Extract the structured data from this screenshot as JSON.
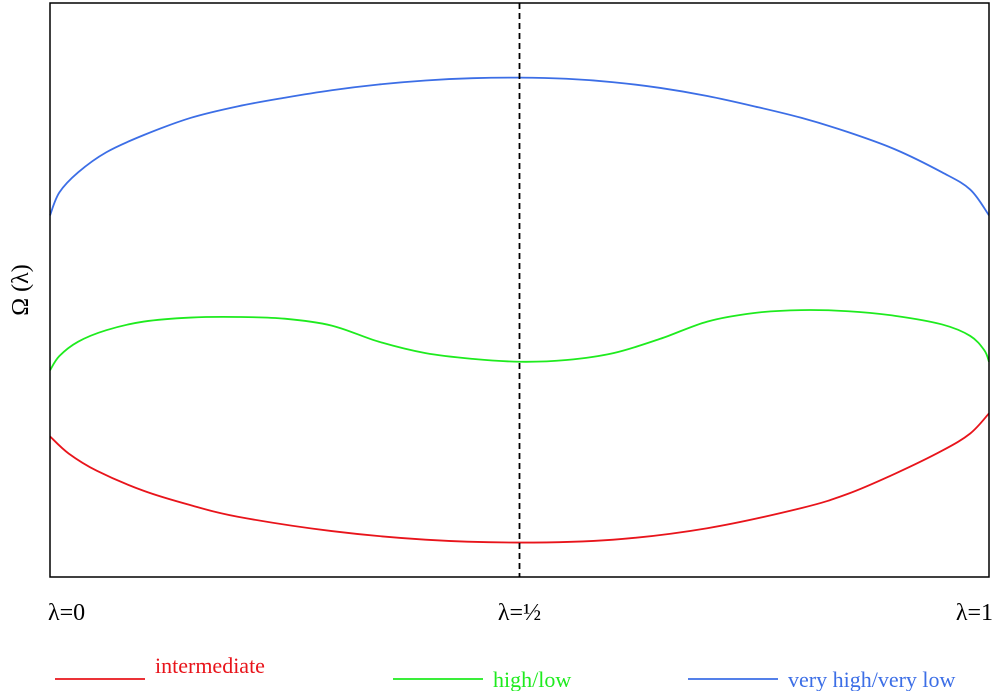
{
  "chart_data": {
    "type": "line",
    "title": "",
    "xlabel": "",
    "ylabel": "Ω (λ)",
    "xlim": [
      0,
      1
    ],
    "ylim": [
      0,
      1
    ],
    "grid": false,
    "legend_position": "bottom",
    "x_ticks": [
      {
        "value": 0,
        "label": "λ=0"
      },
      {
        "value": 0.5,
        "label": "λ=½"
      },
      {
        "value": 1,
        "label": "λ=1"
      }
    ],
    "reference_line": {
      "x": 0.5,
      "style": "dashed",
      "color": "#000000"
    },
    "series": [
      {
        "name": "intermediate",
        "color": "#e8141b",
        "x": [
          0,
          0.02,
          0.05,
          0.1,
          0.15,
          0.2,
          0.3,
          0.4,
          0.5,
          0.6,
          0.7,
          0.8,
          0.85,
          0.9,
          0.95,
          0.98,
          1
        ],
        "y": [
          0.245,
          0.215,
          0.185,
          0.15,
          0.125,
          0.105,
          0.08,
          0.065,
          0.06,
          0.065,
          0.085,
          0.12,
          0.145,
          0.18,
          0.22,
          0.25,
          0.285
        ]
      },
      {
        "name": "high/low",
        "color": "#1eeb1e",
        "x": [
          0,
          0.01,
          0.03,
          0.06,
          0.1,
          0.15,
          0.2,
          0.25,
          0.3,
          0.35,
          0.4,
          0.45,
          0.5,
          0.55,
          0.6,
          0.65,
          0.7,
          0.75,
          0.8,
          0.85,
          0.9,
          0.95,
          0.98,
          0.995,
          1
        ],
        "y": [
          0.36,
          0.385,
          0.41,
          0.43,
          0.445,
          0.452,
          0.453,
          0.45,
          0.438,
          0.41,
          0.39,
          0.38,
          0.375,
          0.378,
          0.39,
          0.415,
          0.445,
          0.46,
          0.465,
          0.463,
          0.455,
          0.44,
          0.42,
          0.395,
          0.375
        ]
      },
      {
        "name": "very high/very low",
        "color": "#3c6ee6",
        "x": [
          0,
          0.01,
          0.03,
          0.06,
          0.1,
          0.15,
          0.2,
          0.25,
          0.3,
          0.35,
          0.4,
          0.45,
          0.5,
          0.55,
          0.6,
          0.65,
          0.7,
          0.75,
          0.8,
          0.85,
          0.9,
          0.95,
          0.98,
          1
        ],
        "y": [
          0.63,
          0.67,
          0.705,
          0.74,
          0.77,
          0.8,
          0.82,
          0.835,
          0.848,
          0.858,
          0.865,
          0.869,
          0.87,
          0.868,
          0.862,
          0.852,
          0.838,
          0.82,
          0.8,
          0.775,
          0.745,
          0.705,
          0.675,
          0.63
        ]
      }
    ]
  }
}
